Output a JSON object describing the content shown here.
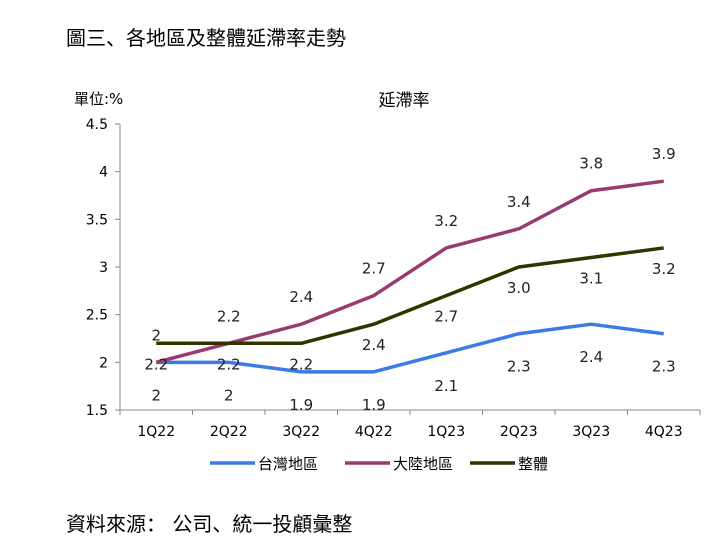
{
  "figure_title": "圖三、各地區及整體延滯率走勢",
  "source_note": "資料來源： 公司、統一投顧彙整",
  "chart_data": {
    "type": "line",
    "title": "延滯率",
    "unit_label": "單位:%",
    "categories": [
      "1Q22",
      "2Q22",
      "3Q22",
      "4Q22",
      "1Q23",
      "2Q23",
      "3Q23",
      "4Q23"
    ],
    "ylim": [
      1.5,
      4.5
    ],
    "yticks": [
      "1.5",
      "2",
      "2.5",
      "3",
      "3.5",
      "4",
      "4.5"
    ],
    "grid": false,
    "legend_position": "bottom",
    "series": [
      {
        "name": "台灣地區",
        "color": "#3b7ae8",
        "values": [
          2,
          2,
          1.9,
          1.9,
          2.1,
          2.3,
          2.4,
          2.3
        ],
        "labels": [
          "2",
          "2",
          "1.9",
          "1.9",
          "2.1",
          "2.3",
          "2.4",
          "2.3"
        ]
      },
      {
        "name": "大陸地區",
        "color": "#983b6e",
        "values": [
          2,
          2.2,
          2.4,
          2.7,
          3.2,
          3.4,
          3.8,
          3.9
        ],
        "labels": [
          "2",
          "2.2",
          "2.4",
          "2.7",
          "3.2",
          "3.4",
          "3.8",
          "3.9"
        ]
      },
      {
        "name": "整體",
        "color": "#333300",
        "values": [
          2.2,
          2.2,
          2.2,
          2.4,
          2.7,
          3.0,
          3.1,
          3.2
        ],
        "labels": [
          "2.2",
          "2.2",
          "2.2",
          "2.4",
          "2.7",
          "3.0",
          "3.1",
          "3.2"
        ]
      }
    ]
  }
}
